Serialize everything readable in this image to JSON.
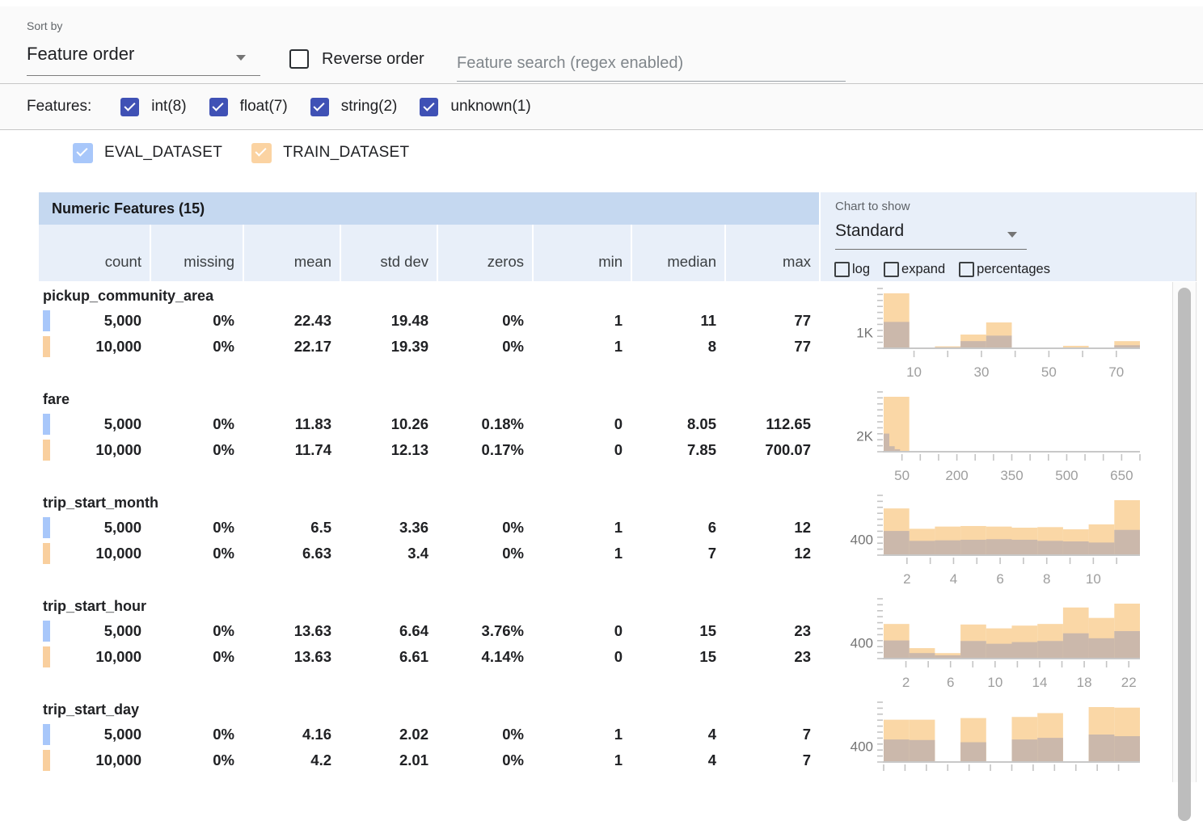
{
  "toolbar": {
    "sort_by_label": "Sort by",
    "sort_value": "Feature order",
    "reverse_label": "Reverse order",
    "search_placeholder": "Feature search (regex enabled)"
  },
  "features_filter": {
    "label": "Features:",
    "types": [
      {
        "label": "int(8)",
        "checked": true
      },
      {
        "label": "float(7)",
        "checked": true
      },
      {
        "label": "string(2)",
        "checked": true
      },
      {
        "label": "unknown(1)",
        "checked": true
      }
    ]
  },
  "datasets": [
    {
      "name": "EVAL_DATASET",
      "color": "#a8c7fa",
      "checked": true
    },
    {
      "name": "TRAIN_DATASET",
      "color": "#fbd3a2",
      "checked": true
    }
  ],
  "table": {
    "title": "Numeric Features (15)",
    "columns": [
      "count",
      "missing",
      "mean",
      "std dev",
      "zeros",
      "min",
      "median",
      "max"
    ]
  },
  "chart_controls": {
    "label": "Chart to show",
    "selected": "Standard",
    "options": [
      {
        "label": "log",
        "checked": false
      },
      {
        "label": "expand",
        "checked": false
      },
      {
        "label": "percentages",
        "checked": false
      }
    ]
  },
  "features": [
    {
      "name": "pickup_community_area",
      "rows": [
        {
          "dataset": "EVAL_DATASET",
          "marker_color": "#a8c7fa",
          "values": [
            "5,000",
            "0%",
            "22.43",
            "19.48",
            "0%",
            "1",
            "11",
            "77"
          ]
        },
        {
          "dataset": "TRAIN_DATASET",
          "marker_color": "#f9cf9e",
          "values": [
            "10,000",
            "0%",
            "22.17",
            "19.39",
            "0%",
            "1",
            "8",
            "77"
          ]
        }
      ]
    },
    {
      "name": "fare",
      "rows": [
        {
          "dataset": "EVAL_DATASET",
          "marker_color": "#a8c7fa",
          "values": [
            "5,000",
            "0%",
            "11.83",
            "10.26",
            "0.18%",
            "0",
            "8.05",
            "112.65"
          ]
        },
        {
          "dataset": "TRAIN_DATASET",
          "marker_color": "#f9cf9e",
          "values": [
            "10,000",
            "0%",
            "11.74",
            "12.13",
            "0.17%",
            "0",
            "7.85",
            "700.07"
          ]
        }
      ]
    },
    {
      "name": "trip_start_month",
      "rows": [
        {
          "dataset": "EVAL_DATASET",
          "marker_color": "#a8c7fa",
          "values": [
            "5,000",
            "0%",
            "6.5",
            "3.36",
            "0%",
            "1",
            "6",
            "12"
          ]
        },
        {
          "dataset": "TRAIN_DATASET",
          "marker_color": "#f9cf9e",
          "values": [
            "10,000",
            "0%",
            "6.63",
            "3.4",
            "0%",
            "1",
            "7",
            "12"
          ]
        }
      ]
    },
    {
      "name": "trip_start_hour",
      "rows": [
        {
          "dataset": "EVAL_DATASET",
          "marker_color": "#a8c7fa",
          "values": [
            "5,000",
            "0%",
            "13.63",
            "6.64",
            "3.76%",
            "0",
            "15",
            "23"
          ]
        },
        {
          "dataset": "TRAIN_DATASET",
          "marker_color": "#f9cf9e",
          "values": [
            "10,000",
            "0%",
            "13.63",
            "6.61",
            "4.14%",
            "0",
            "15",
            "23"
          ]
        }
      ]
    },
    {
      "name": "trip_start_day",
      "rows": [
        {
          "dataset": "EVAL_DATASET",
          "marker_color": "#a8c7fa",
          "values": [
            "5,000",
            "0%",
            "4.16",
            "2.02",
            "0%",
            "1",
            "4",
            "7"
          ]
        },
        {
          "dataset": "TRAIN_DATASET",
          "marker_color": "#f9cf9e",
          "values": [
            "10,000",
            "0%",
            "4.2",
            "2.01",
            "0%",
            "1",
            "4",
            "7"
          ]
        }
      ]
    }
  ],
  "chart_data": [
    {
      "type": "histogram",
      "feature": "pickup_community_area",
      "series_colors": {
        "train": "#fad7a6",
        "overlap": "#cbb8ab"
      },
      "x_range": [
        1,
        77
      ],
      "y_axis_label": "1K",
      "y_label_frac": 0.29,
      "x_tick_values": [
        10,
        20,
        30,
        40,
        50,
        60,
        70
      ],
      "x_tick_labels": [
        10,
        30,
        50,
        70
      ],
      "height_units": "fraction of plot height; y label marks scale reference",
      "bars": [
        {
          "x0": 0.0,
          "x1": 0.1,
          "train": 1.0,
          "eval": 0.48
        },
        {
          "x0": 0.1,
          "x1": 0.2,
          "train": 0.015,
          "eval": 0.008
        },
        {
          "x0": 0.2,
          "x1": 0.3,
          "train": 0.035,
          "eval": 0.02
        },
        {
          "x0": 0.3,
          "x1": 0.4,
          "train": 0.25,
          "eval": 0.13
        },
        {
          "x0": 0.4,
          "x1": 0.5,
          "train": 0.47,
          "eval": 0.23
        },
        {
          "x0": 0.5,
          "x1": 0.6,
          "train": 0.01,
          "eval": 0.005
        },
        {
          "x0": 0.6,
          "x1": 0.7,
          "train": 0.012,
          "eval": 0.006
        },
        {
          "x0": 0.7,
          "x1": 0.8,
          "train": 0.045,
          "eval": 0.012
        },
        {
          "x0": 0.8,
          "x1": 0.9,
          "train": 0.01,
          "eval": 0.005
        },
        {
          "x0": 0.9,
          "x1": 1.0,
          "train": 0.13,
          "eval": 0.055
        }
      ]
    },
    {
      "type": "histogram",
      "feature": "fare",
      "series_colors": {
        "train": "#fad7a6",
        "overlap": "#cbb8ab"
      },
      "x_range": [
        0,
        700
      ],
      "y_axis_label": "2K",
      "y_label_frac": 0.29,
      "x_tick_values": [
        50,
        100,
        150,
        200,
        250,
        300,
        350,
        400,
        450,
        500,
        550,
        600,
        650,
        700
      ],
      "x_tick_labels": [
        50,
        200,
        350,
        500,
        650
      ],
      "height_units": "fraction of plot height; y label marks scale reference",
      "bars": [
        {
          "x0": 0.0,
          "x1": 0.1,
          "train": 1.0,
          "eval": 0
        },
        {
          "x0": 0.0,
          "x1": 0.022,
          "train": 0,
          "eval": 0.33
        },
        {
          "x0": 0.022,
          "x1": 0.043,
          "train": 0,
          "eval": 0.1
        },
        {
          "x0": 0.043,
          "x1": 0.064,
          "train": 0,
          "eval": 0.045
        },
        {
          "x0": 0.064,
          "x1": 0.1,
          "train": 0,
          "eval": 0.015
        }
      ]
    },
    {
      "type": "histogram",
      "feature": "trip_start_month",
      "series_colors": {
        "train": "#fad7a6",
        "overlap": "#cbb8ab"
      },
      "x_range": [
        1,
        12
      ],
      "y_axis_label": "400",
      "y_label_frac": 0.29,
      "x_tick_values": [
        2,
        3,
        4,
        5,
        6,
        7,
        8,
        9,
        10,
        11
      ],
      "x_tick_labels": [
        2,
        4,
        6,
        8,
        10
      ],
      "height_units": "fraction of plot height; y label marks scale reference",
      "bars": [
        {
          "x0": 0.0,
          "x1": 0.1,
          "train": 0.85,
          "eval": 0.44
        },
        {
          "x0": 0.1,
          "x1": 0.2,
          "train": 0.48,
          "eval": 0.26
        },
        {
          "x0": 0.2,
          "x1": 0.3,
          "train": 0.52,
          "eval": 0.27
        },
        {
          "x0": 0.3,
          "x1": 0.4,
          "train": 0.53,
          "eval": 0.28
        },
        {
          "x0": 0.4,
          "x1": 0.5,
          "train": 0.52,
          "eval": 0.29
        },
        {
          "x0": 0.5,
          "x1": 0.6,
          "train": 0.5,
          "eval": 0.28
        },
        {
          "x0": 0.6,
          "x1": 0.7,
          "train": 0.51,
          "eval": 0.26
        },
        {
          "x0": 0.7,
          "x1": 0.8,
          "train": 0.47,
          "eval": 0.25
        },
        {
          "x0": 0.8,
          "x1": 0.9,
          "train": 0.56,
          "eval": 0.23
        },
        {
          "x0": 0.9,
          "x1": 1.0,
          "train": 1.0,
          "eval": 0.46
        }
      ]
    },
    {
      "type": "histogram",
      "feature": "trip_start_hour",
      "series_colors": {
        "train": "#fad7a6",
        "overlap": "#cbb8ab"
      },
      "x_range": [
        0,
        23
      ],
      "y_axis_label": "400",
      "y_label_frac": 0.29,
      "x_tick_values": [
        2,
        4,
        6,
        8,
        10,
        12,
        14,
        16,
        18,
        20,
        22
      ],
      "x_tick_labels": [
        2,
        6,
        10,
        14,
        18,
        22
      ],
      "height_units": "fraction of plot height; y label marks scale reference",
      "bars": [
        {
          "x0": 0.0,
          "x1": 0.1,
          "train": 0.63,
          "eval": 0.33
        },
        {
          "x0": 0.1,
          "x1": 0.2,
          "train": 0.19,
          "eval": 0.1
        },
        {
          "x0": 0.2,
          "x1": 0.3,
          "train": 0.1,
          "eval": 0.06
        },
        {
          "x0": 0.3,
          "x1": 0.4,
          "train": 0.62,
          "eval": 0.32
        },
        {
          "x0": 0.4,
          "x1": 0.5,
          "train": 0.55,
          "eval": 0.27
        },
        {
          "x0": 0.5,
          "x1": 0.6,
          "train": 0.6,
          "eval": 0.3
        },
        {
          "x0": 0.6,
          "x1": 0.7,
          "train": 0.63,
          "eval": 0.32
        },
        {
          "x0": 0.7,
          "x1": 0.8,
          "train": 0.93,
          "eval": 0.46
        },
        {
          "x0": 0.8,
          "x1": 0.9,
          "train": 0.74,
          "eval": 0.37
        },
        {
          "x0": 0.9,
          "x1": 1.0,
          "train": 1.0,
          "eval": 0.5
        }
      ]
    },
    {
      "type": "histogram",
      "feature": "trip_start_day",
      "series_colors": {
        "train": "#fad7a6",
        "overlap": "#cbb8ab"
      },
      "x_range": [
        1,
        7
      ],
      "y_axis_label": "400",
      "y_label_frac": 0.29,
      "x_tick_values": [
        1,
        1.5,
        2,
        2.5,
        3,
        3.5,
        4,
        4.5,
        5,
        5.5,
        6,
        6.5
      ],
      "x_tick_labels": [],
      "height_units": "fraction of plot height; y label marks scale reference",
      "bars": [
        {
          "x0": 0.0,
          "x1": 0.1,
          "train": 0.77,
          "eval": 0.41
        },
        {
          "x0": 0.1,
          "x1": 0.2,
          "train": 0.77,
          "eval": 0.4
        },
        {
          "x0": 0.3,
          "x1": 0.4,
          "train": 0.8,
          "eval": 0.36
        },
        {
          "x0": 0.5,
          "x1": 0.6,
          "train": 0.82,
          "eval": 0.41
        },
        {
          "x0": 0.6,
          "x1": 0.7,
          "train": 0.89,
          "eval": 0.44
        },
        {
          "x0": 0.8,
          "x1": 0.9,
          "train": 1.0,
          "eval": 0.5
        },
        {
          "x0": 0.9,
          "x1": 1.0,
          "train": 0.99,
          "eval": 0.47
        }
      ]
    }
  ]
}
